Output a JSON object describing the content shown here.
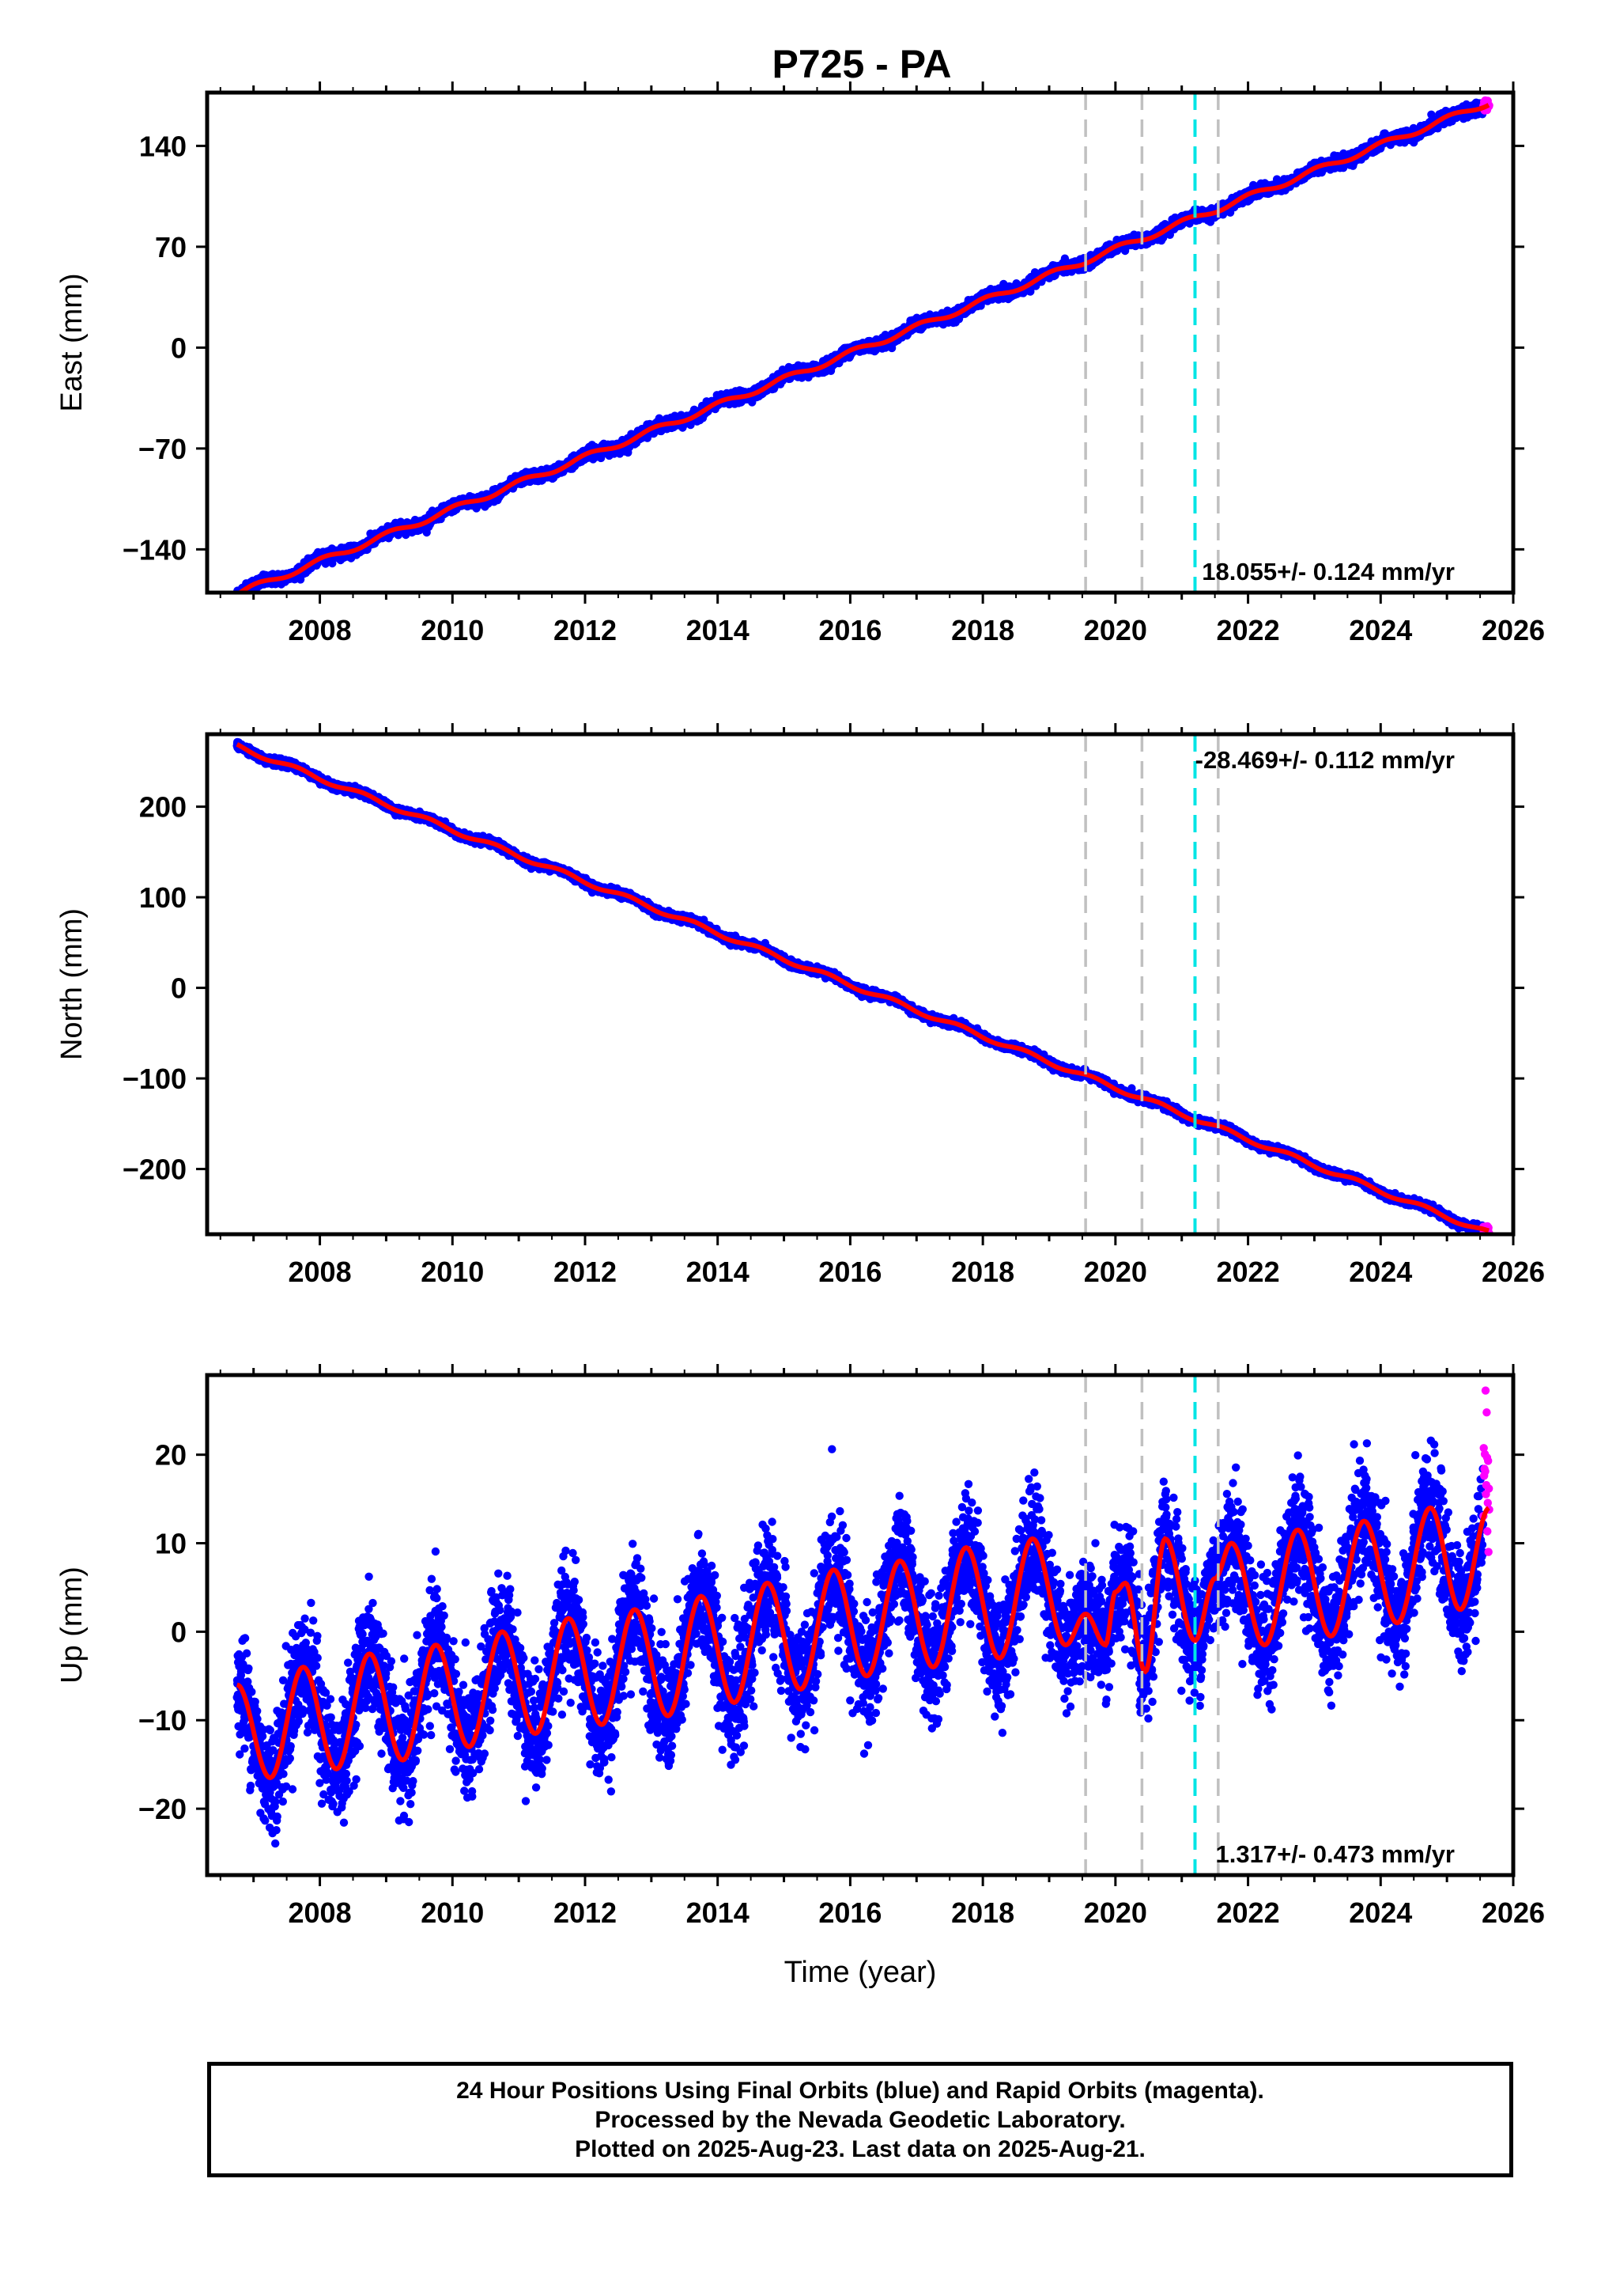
{
  "title": "P725 - PA",
  "colors": {
    "final_orbits": "#0000ff",
    "rapid_orbits": "#ff00ff",
    "model_fit": "#ff0000",
    "equipment_change": "#c0c0c0",
    "earthquake": "#00e5e5"
  },
  "chart_data": [
    {
      "type": "scatter",
      "xlabel": "",
      "ylabel": "East (mm)",
      "xlim": [
        2006.3,
        2026.0
      ],
      "ylim": [
        -170,
        177
      ],
      "xticks": [
        2008,
        2010,
        2012,
        2014,
        2016,
        2018,
        2020,
        2022,
        2024,
        2026
      ],
      "yticks": [
        -140,
        -70,
        0,
        70,
        140
      ],
      "rate_label": "18.055+/- 0.124 mm/yr",
      "rate_position": "bottom-right",
      "trend": {
        "t0": 2016.0,
        "value_at_t0": -3.8,
        "rate": 18.055
      },
      "seasonal": {
        "amplitude": 2.0,
        "phase": 0.2
      },
      "scatter_sd": 1.8,
      "final_orbits": {
        "start": 2006.75,
        "end": 2025.55
      },
      "rapid_orbits": {
        "start": 2025.55,
        "end": 2025.64
      },
      "dashed_lines_gray": [
        2019.55,
        2020.4,
        2021.55
      ],
      "dashed_lines_cyan": [
        2021.2
      ],
      "grid": false
    },
    {
      "type": "scatter",
      "xlabel": "",
      "ylabel": "North (mm)",
      "xlim": [
        2006.3,
        2026.0
      ],
      "ylim": [
        -272,
        280
      ],
      "xticks": [
        2008,
        2010,
        2012,
        2014,
        2016,
        2018,
        2020,
        2022,
        2024,
        2026
      ],
      "yticks": [
        -200,
        -100,
        0,
        100,
        200
      ],
      "rate_label": "-28.469+/- 0.112 mm/yr",
      "rate_position": "top-right",
      "trend": {
        "t0": 2016.0,
        "value_at_t0": 3.5,
        "rate": -28.469
      },
      "seasonal": {
        "amplitude": 2.5,
        "phase": 0.6
      },
      "scatter_sd": 2.0,
      "final_orbits": {
        "start": 2006.75,
        "end": 2025.55
      },
      "rapid_orbits": {
        "start": 2025.55,
        "end": 2025.64
      },
      "dashed_lines_gray": [
        2019.55,
        2020.4,
        2021.55
      ],
      "dashed_lines_cyan": [
        2021.2
      ],
      "grid": false
    },
    {
      "type": "scatter",
      "xlabel": "Time (year)",
      "ylabel": "Up (mm)",
      "xlim": [
        2006.3,
        2026.0
      ],
      "ylim": [
        -27.5,
        29
      ],
      "xticks": [
        2008,
        2010,
        2012,
        2014,
        2016,
        2018,
        2020,
        2022,
        2024,
        2026
      ],
      "yticks": [
        -20,
        -10,
        0,
        10,
        20
      ],
      "rate_label": "1.317+/- 0.473 mm/yr",
      "rate_position": "bottom-right",
      "model_points": [
        [
          2006.75,
          -6
        ],
        [
          2007.25,
          -16.5
        ],
        [
          2007.75,
          -4
        ],
        [
          2008.25,
          -15.5
        ],
        [
          2008.75,
          -2.5
        ],
        [
          2009.25,
          -14.5
        ],
        [
          2009.75,
          -1.5
        ],
        [
          2010.25,
          -13
        ],
        [
          2010.75,
          0
        ],
        [
          2011.25,
          -11.5
        ],
        [
          2011.75,
          1.5
        ],
        [
          2012.25,
          -10.5
        ],
        [
          2012.75,
          2.5
        ],
        [
          2013.25,
          -9.5
        ],
        [
          2013.75,
          4
        ],
        [
          2014.25,
          -8
        ],
        [
          2014.75,
          5.5
        ],
        [
          2015.25,
          -6.5
        ],
        [
          2015.75,
          7
        ],
        [
          2016.25,
          -5
        ],
        [
          2016.75,
          8
        ],
        [
          2017.25,
          -4
        ],
        [
          2017.75,
          9.5
        ],
        [
          2018.25,
          -3
        ],
        [
          2018.75,
          10.5
        ],
        [
          2019.25,
          -1.5
        ],
        [
          2019.55,
          2
        ],
        [
          2019.85,
          -1.5
        ],
        [
          2020.0,
          4.5
        ],
        [
          2020.15,
          5.5
        ],
        [
          2020.45,
          -4.5
        ],
        [
          2020.75,
          10.5
        ],
        [
          2021.2,
          -1
        ],
        [
          2021.5,
          6
        ],
        [
          2021.75,
          10
        ],
        [
          2022.25,
          -1.5
        ],
        [
          2022.75,
          11.5
        ],
        [
          2023.25,
          -0.5
        ],
        [
          2023.75,
          12.5
        ],
        [
          2024.25,
          1
        ],
        [
          2024.75,
          14
        ],
        [
          2025.2,
          2.5
        ],
        [
          2025.64,
          14
        ]
      ],
      "scatter_sd": 3.2,
      "final_orbits": {
        "start": 2006.75,
        "end": 2025.55
      },
      "rapid_orbits": {
        "start": 2025.55,
        "end": 2025.64
      },
      "dashed_lines_gray": [
        2019.55,
        2020.4,
        2021.55
      ],
      "dashed_lines_cyan": [
        2021.2
      ],
      "grid": false
    }
  ],
  "footer": {
    "line1": "24 Hour Positions Using Final Orbits (blue) and Rapid Orbits (magenta).",
    "line2": "Processed by the Nevada Geodetic Laboratory.",
    "line3": "Plotted on 2025-Aug-23. Last data on 2025-Aug-21."
  }
}
